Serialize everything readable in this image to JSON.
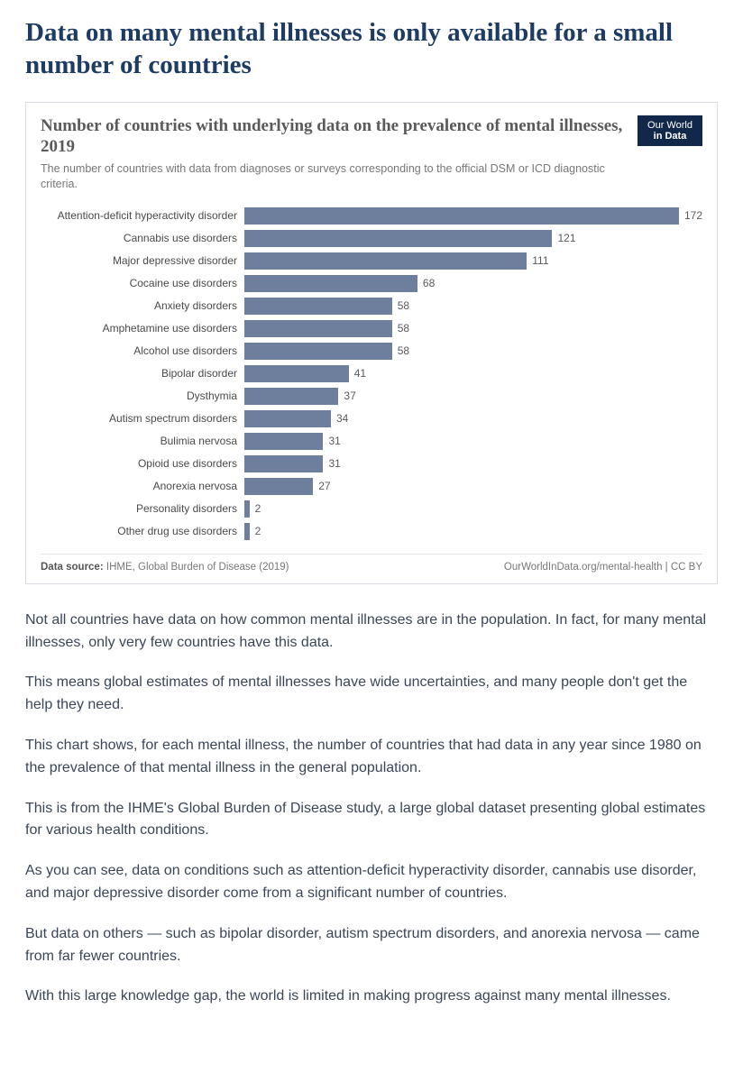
{
  "page": {
    "title": "Data on many mental illnesses is only available for a small number of countries"
  },
  "chart": {
    "type": "bar",
    "title": "Number of countries with underlying data on the prevalence of mental illnesses, 2019",
    "subtitle": "The number of countries with data from diagnoses or surveys corresponding to the official DSM or ICD diagnostic criteria.",
    "logo_line1": "Our World",
    "logo_line2": "in Data",
    "logo_bg": "#12284b",
    "bar_color": "#6e7f9e",
    "background_color": "#ffffff",
    "grid_color": "#e3e6eb",
    "label_fontsize": 12,
    "title_fontsize": 19,
    "xmax": 180,
    "rows": [
      {
        "label": "Attention-deficit hyperactivity disorder",
        "value": 172
      },
      {
        "label": "Cannabis use disorders",
        "value": 121
      },
      {
        "label": "Major depressive disorder",
        "value": 111
      },
      {
        "label": "Cocaine use disorders",
        "value": 68
      },
      {
        "label": "Anxiety disorders",
        "value": 58
      },
      {
        "label": "Amphetamine use disorders",
        "value": 58
      },
      {
        "label": "Alcohol use disorders",
        "value": 58
      },
      {
        "label": "Bipolar disorder",
        "value": 41
      },
      {
        "label": "Dysthymia",
        "value": 37
      },
      {
        "label": "Autism spectrum disorders",
        "value": 34
      },
      {
        "label": "Bulimia nervosa",
        "value": 31
      },
      {
        "label": "Opioid use disorders",
        "value": 31
      },
      {
        "label": "Anorexia nervosa",
        "value": 27
      },
      {
        "label": "Personality disorders",
        "value": 2
      },
      {
        "label": "Other drug use disorders",
        "value": 2
      }
    ],
    "source_label": "Data source:",
    "source_value": "IHME, Global Burden of Disease (2019)",
    "attribution": "OurWorldInData.org/mental-health | CC BY"
  },
  "body": {
    "paragraphs": [
      "Not all countries have data on how common mental illnesses are in the population. In fact, for many mental illnesses, only very few countries have this data.",
      "This means global estimates of mental illnesses have wide uncertainties, and many people don't get the help they need.",
      "This chart shows, for each mental illness, the number of countries that had data in any year since 1980 on the prevalence of that mental illness in the general population.",
      "This is from the IHME's Global Burden of Disease study, a large global dataset presenting global estimates for various health conditions.",
      "As you can see, data on conditions such as attention-deficit hyperactivity disorder, cannabis use disorder, and major depressive disorder come from a significant number of countries.",
      "But data on others — such as bipolar disorder, autism spectrum disorders, and anorexia nervosa — came from far fewer countries.",
      "With this large knowledge gap, the world is limited in making progress against many mental illnesses."
    ]
  }
}
